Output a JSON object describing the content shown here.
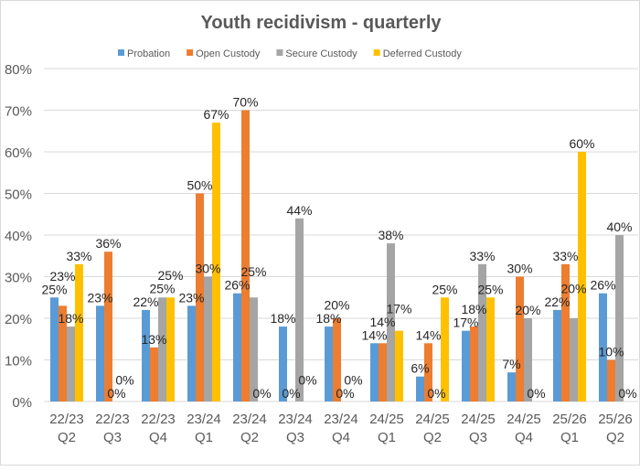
{
  "chart_data": {
    "type": "bar",
    "title": "Youth recidivism - quarterly",
    "xlabel": "",
    "ylabel": "",
    "ylim": [
      0,
      80
    ],
    "yticks": [
      "0%",
      "10%",
      "20%",
      "30%",
      "40%",
      "50%",
      "60%",
      "70%",
      "80%"
    ],
    "grid": true,
    "legend_position": "top",
    "categories": [
      [
        "22/23",
        "Q2"
      ],
      [
        "22/23",
        "Q3"
      ],
      [
        "22/23",
        "Q4"
      ],
      [
        "23/24",
        "Q1"
      ],
      [
        "23/24",
        "Q2"
      ],
      [
        "23/24",
        "Q3"
      ],
      [
        "23/24",
        "Q4"
      ],
      [
        "24/25",
        "Q1"
      ],
      [
        "24/25",
        "Q2"
      ],
      [
        "24/25",
        "Q3"
      ],
      [
        "24/25",
        "Q4"
      ],
      [
        "25/26",
        "Q1"
      ],
      [
        "25/26",
        "Q2"
      ]
    ],
    "series": [
      {
        "name": "Probation",
        "color": "#5b9bd5",
        "values": [
          25,
          23,
          22,
          23,
          26,
          18,
          18,
          14,
          6,
          17,
          7,
          22,
          26
        ]
      },
      {
        "name": "Open Custody",
        "color": "#ed7d31",
        "values": [
          23,
          36,
          13,
          50,
          70,
          0,
          20,
          14,
          14,
          18,
          30,
          33,
          10
        ]
      },
      {
        "name": "Secure Custody",
        "color": "#a5a5a5",
        "values": [
          18,
          0,
          25,
          30,
          25,
          44,
          0,
          38,
          0,
          33,
          20,
          20,
          40
        ]
      },
      {
        "name": "Deferred Custody",
        "color": "#ffc000",
        "values": [
          33,
          0,
          25,
          67,
          0,
          0,
          0,
          17,
          25,
          25,
          0,
          60,
          0
        ]
      }
    ]
  }
}
